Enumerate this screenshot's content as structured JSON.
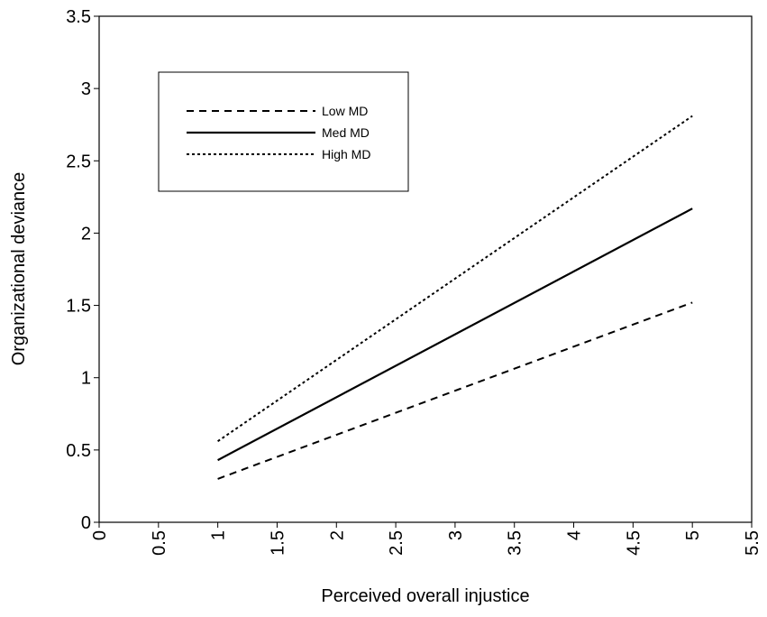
{
  "chart_data": {
    "type": "line",
    "title": "",
    "xlabel": "Perceived overall injustice",
    "ylabel": "Organizational deviance",
    "xlim": [
      0,
      5.5
    ],
    "ylim": [
      0,
      3.5
    ],
    "x_ticks": [
      "0",
      "0.5",
      "1",
      "1.5",
      "2",
      "2.5",
      "3",
      "3.5",
      "4",
      "4.5",
      "5",
      "5.5"
    ],
    "y_ticks": [
      "0",
      "0.5",
      "1",
      "1.5",
      "2",
      "2.5",
      "3",
      "3.5"
    ],
    "grid": false,
    "legend_position": "top-left",
    "series": [
      {
        "name": "Low MD",
        "style": "dashed",
        "x": [
          1,
          5
        ],
        "y": [
          0.3,
          1.52
        ]
      },
      {
        "name": "Med MD",
        "style": "solid",
        "x": [
          1,
          5
        ],
        "y": [
          0.43,
          2.17
        ]
      },
      {
        "name": "High MD",
        "style": "dotted",
        "x": [
          1,
          5
        ],
        "y": [
          0.56,
          2.81
        ]
      }
    ],
    "line_color": "#000000"
  }
}
